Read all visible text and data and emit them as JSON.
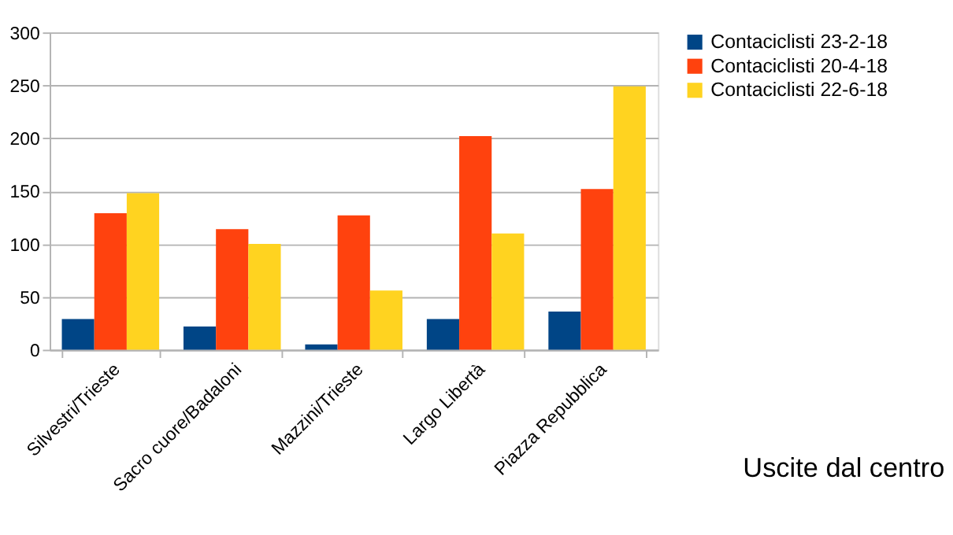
{
  "chart_data": {
    "type": "bar",
    "xlabel": "Uscite dal centro",
    "categories": [
      "Silvestri/Trieste",
      "Sacro cuore/Badaloni",
      "Mazzini/Trieste",
      "Largo Libertà",
      "Piazza Repubblica"
    ],
    "series": [
      {
        "name": "Contaciclisti 23-2-18",
        "color": "#004586",
        "values": [
          29,
          22,
          5,
          29,
          36
        ]
      },
      {
        "name": "Contaciclisti 20-4-18",
        "color": "#ff420e",
        "values": [
          129,
          114,
          127,
          202,
          152
        ]
      },
      {
        "name": "Contaciclisti 22-6-18",
        "color": "#ffd320",
        "values": [
          148,
          100,
          56,
          110,
          249
        ]
      }
    ],
    "ylim": [
      0,
      300
    ],
    "yticks": [
      0,
      50,
      100,
      150,
      200,
      250,
      300
    ],
    "grid": "y",
    "legend": "right"
  }
}
